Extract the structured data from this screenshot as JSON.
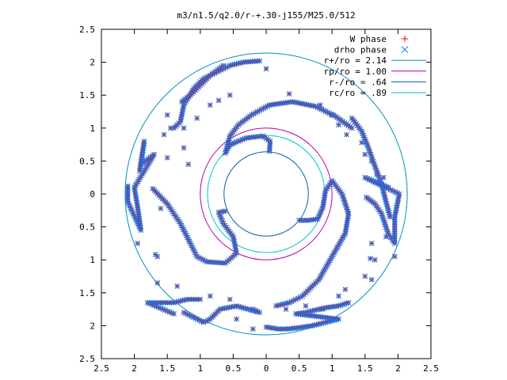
{
  "chart_data": {
    "type": "scatter",
    "title": "m3/n1.5/q2.0/r-+.30-j155/M25.0/512",
    "xlabel": "",
    "ylabel": "",
    "xlim": [
      -2.5,
      2.5
    ],
    "ylim": [
      -2.5,
      2.5
    ],
    "xtick_values": [
      -2.5,
      -2,
      -1.5,
      -1,
      -0.5,
      0,
      0.5,
      1,
      1.5,
      2,
      2.5
    ],
    "xtick_labels": [
      "2.5",
      "2",
      "1.5",
      "1",
      "0.5",
      "0",
      "0.5",
      "1",
      "1.5",
      "2",
      "2.5"
    ],
    "ytick_values": [
      2.5,
      2,
      1.5,
      1,
      0.5,
      0,
      -0.5,
      -1,
      -1.5,
      -2,
      -2.5
    ],
    "ytick_labels": [
      "2.5",
      "2",
      "1.5",
      "1",
      "0.5",
      "0",
      "0.5",
      "1",
      "1.5",
      "2",
      "2.5"
    ],
    "grid": false,
    "legend_position": "top-right",
    "series": [
      {
        "name": "W phase",
        "marker": "plus",
        "color": "#ff0000"
      },
      {
        "name": "drho phase",
        "marker": "cross",
        "color": "#0080ff"
      }
    ],
    "circles": [
      {
        "name": "r+/ro = 2.14",
        "radius": 2.14,
        "color": "#0090c0"
      },
      {
        "name": "rp/ro = 1.00",
        "radius": 1.0,
        "color": "#b000b0"
      },
      {
        "name": "r-/ro = .64",
        "radius": 0.64,
        "color": "#0060b0"
      },
      {
        "name": "rc/ro = .89",
        "radius": 0.89,
        "color": "#00c8c8"
      }
    ],
    "spiral_arms": [
      [
        [
          0.05,
          0.65
        ],
        [
          0.06,
          0.8
        ],
        [
          -0.05,
          0.88
        ],
        [
          -0.3,
          0.85
        ],
        [
          -0.55,
          0.75
        ],
        [
          -0.62,
          0.62
        ],
        [
          -0.55,
          0.88
        ],
        [
          -0.42,
          1.05
        ],
        [
          -0.22,
          1.2
        ],
        [
          0.05,
          1.35
        ],
        [
          0.4,
          1.4
        ],
        [
          0.75,
          1.33
        ],
        [
          1.05,
          1.18
        ],
        [
          1.3,
          1.0
        ]
      ],
      [
        [
          0.5,
          -0.4
        ],
        [
          0.65,
          -0.4
        ],
        [
          0.78,
          -0.38
        ],
        [
          0.86,
          -0.2
        ],
        [
          0.9,
          0.05
        ],
        [
          1.0,
          0.2
        ],
        [
          1.15,
          0.0
        ],
        [
          1.25,
          -0.3
        ],
        [
          1.2,
          -0.6
        ],
        [
          1.0,
          -0.95
        ],
        [
          0.8,
          -1.3
        ],
        [
          0.55,
          -1.55
        ],
        [
          0.35,
          -1.65
        ],
        [
          0.15,
          -1.7
        ]
      ],
      [
        [
          -0.62,
          -0.26
        ],
        [
          -0.72,
          -0.28
        ],
        [
          -0.65,
          -0.45
        ],
        [
          -0.5,
          -0.65
        ],
        [
          -0.45,
          -0.9
        ],
        [
          -0.62,
          -1.05
        ],
        [
          -0.9,
          -1.03
        ],
        [
          -1.05,
          -0.95
        ],
        [
          -1.15,
          -0.75
        ],
        [
          -1.3,
          -0.45
        ],
        [
          -1.5,
          -0.15
        ],
        [
          -1.72,
          0.08
        ]
      ],
      [
        [
          -0.1,
          2.02
        ],
        [
          -0.35,
          2.0
        ],
        [
          -0.55,
          1.95
        ],
        [
          -0.75,
          1.85
        ],
        [
          -0.95,
          1.75
        ],
        [
          -1.1,
          1.6
        ],
        [
          -1.25,
          1.35
        ],
        [
          -1.3,
          1.1
        ],
        [
          -1.4,
          1.0
        ]
      ],
      [
        [
          1.3,
          1.15
        ],
        [
          1.45,
          0.95
        ],
        [
          1.55,
          0.7
        ],
        [
          1.65,
          0.42
        ],
        [
          1.75,
          0.15
        ],
        [
          1.8,
          -0.05
        ],
        [
          1.88,
          -0.35
        ]
      ],
      [
        [
          -1.0,
          -1.6
        ],
        [
          -1.2,
          -1.6
        ],
        [
          -1.4,
          -1.65
        ],
        [
          -1.6,
          -1.65
        ],
        [
          -1.8,
          -1.65
        ],
        [
          -1.4,
          -1.82
        ]
      ],
      [
        [
          -2.1,
          0.12
        ],
        [
          -2.1,
          -0.12
        ],
        [
          -1.9,
          -0.55
        ],
        [
          -1.95,
          -0.2
        ],
        [
          -2.0,
          0.1
        ],
        [
          -1.7,
          0.6
        ],
        [
          -1.9,
          0.45
        ],
        [
          -1.85,
          0.8
        ],
        [
          -1.92,
          0.35
        ]
      ],
      [
        [
          1.52,
          -0.05
        ],
        [
          1.65,
          -0.15
        ],
        [
          1.75,
          -0.3
        ],
        [
          1.85,
          -0.6
        ],
        [
          1.95,
          -0.75
        ],
        [
          1.95,
          -0.35
        ],
        [
          2.02,
          0.0
        ],
        [
          1.5,
          0.25
        ],
        [
          1.85,
          0.1
        ]
      ],
      [
        [
          0.0,
          -2.02
        ],
        [
          0.18,
          -2.05
        ],
        [
          0.32,
          -2.05
        ],
        [
          0.5,
          -2.03
        ],
        [
          0.7,
          -2.0
        ],
        [
          0.9,
          -1.95
        ],
        [
          1.1,
          -1.9
        ],
        [
          0.45,
          -1.82
        ],
        [
          0.6,
          -1.8
        ],
        [
          0.8,
          -1.75
        ],
        [
          0.95,
          -1.72
        ],
        [
          1.1,
          -1.7
        ],
        [
          1.25,
          -1.65
        ]
      ],
      [
        [
          -0.2,
          -1.75
        ],
        [
          -0.1,
          -1.8
        ],
        [
          -0.45,
          -1.7
        ],
        [
          -0.7,
          -1.75
        ],
        [
          -0.85,
          -1.9
        ],
        [
          -0.95,
          -1.95
        ],
        [
          -1.25,
          -1.8
        ]
      ],
      [
        [
          -0.65,
          1.95
        ],
        [
          -0.85,
          1.8
        ],
        [
          -1.0,
          1.65
        ],
        [
          -1.15,
          1.5
        ],
        [
          -1.28,
          1.4
        ]
      ]
    ],
    "sparse_points": [
      [
        0.0,
        1.9
      ],
      [
        0.35,
        1.52
      ],
      [
        0.82,
        1.35
      ],
      [
        1.0,
        1.2
      ],
      [
        1.1,
        1.05
      ],
      [
        1.22,
        0.9
      ],
      [
        1.45,
        0.78
      ],
      [
        1.5,
        0.6
      ],
      [
        1.6,
        0.5
      ],
      [
        1.68,
        0.3
      ],
      [
        1.78,
        0.25
      ],
      [
        1.82,
        -0.65
      ],
      [
        1.95,
        -0.95
      ],
      [
        1.58,
        -0.98
      ],
      [
        1.6,
        -1.3
      ],
      [
        1.6,
        -0.75
      ],
      [
        -1.5,
        1.2
      ],
      [
        -1.45,
        1.0
      ],
      [
        -1.55,
        0.9
      ],
      [
        -1.5,
        0.55
      ],
      [
        -1.95,
        -0.75
      ],
      [
        -1.68,
        -0.92
      ],
      [
        -1.65,
        -0.95
      ],
      [
        -1.65,
        -1.35
      ],
      [
        -0.72,
        1.42
      ],
      [
        -0.55,
        1.5
      ],
      [
        -0.85,
        1.35
      ],
      [
        -1.05,
        1.15
      ],
      [
        -1.25,
        1.0
      ],
      [
        -1.25,
        0.7
      ],
      [
        -1.18,
        0.45
      ],
      [
        -1.6,
        -0.22
      ],
      [
        -1.35,
        -1.4
      ],
      [
        -0.85,
        -1.55
      ],
      [
        -0.55,
        -1.6
      ],
      [
        -0.45,
        -1.9
      ],
      [
        -0.2,
        -2.05
      ],
      [
        0.3,
        -1.75
      ],
      [
        0.6,
        -1.7
      ],
      [
        0.85,
        -1.75
      ],
      [
        1.1,
        -1.55
      ],
      [
        1.2,
        -1.45
      ],
      [
        1.5,
        -1.25
      ],
      [
        1.65,
        -1.0
      ]
    ]
  }
}
